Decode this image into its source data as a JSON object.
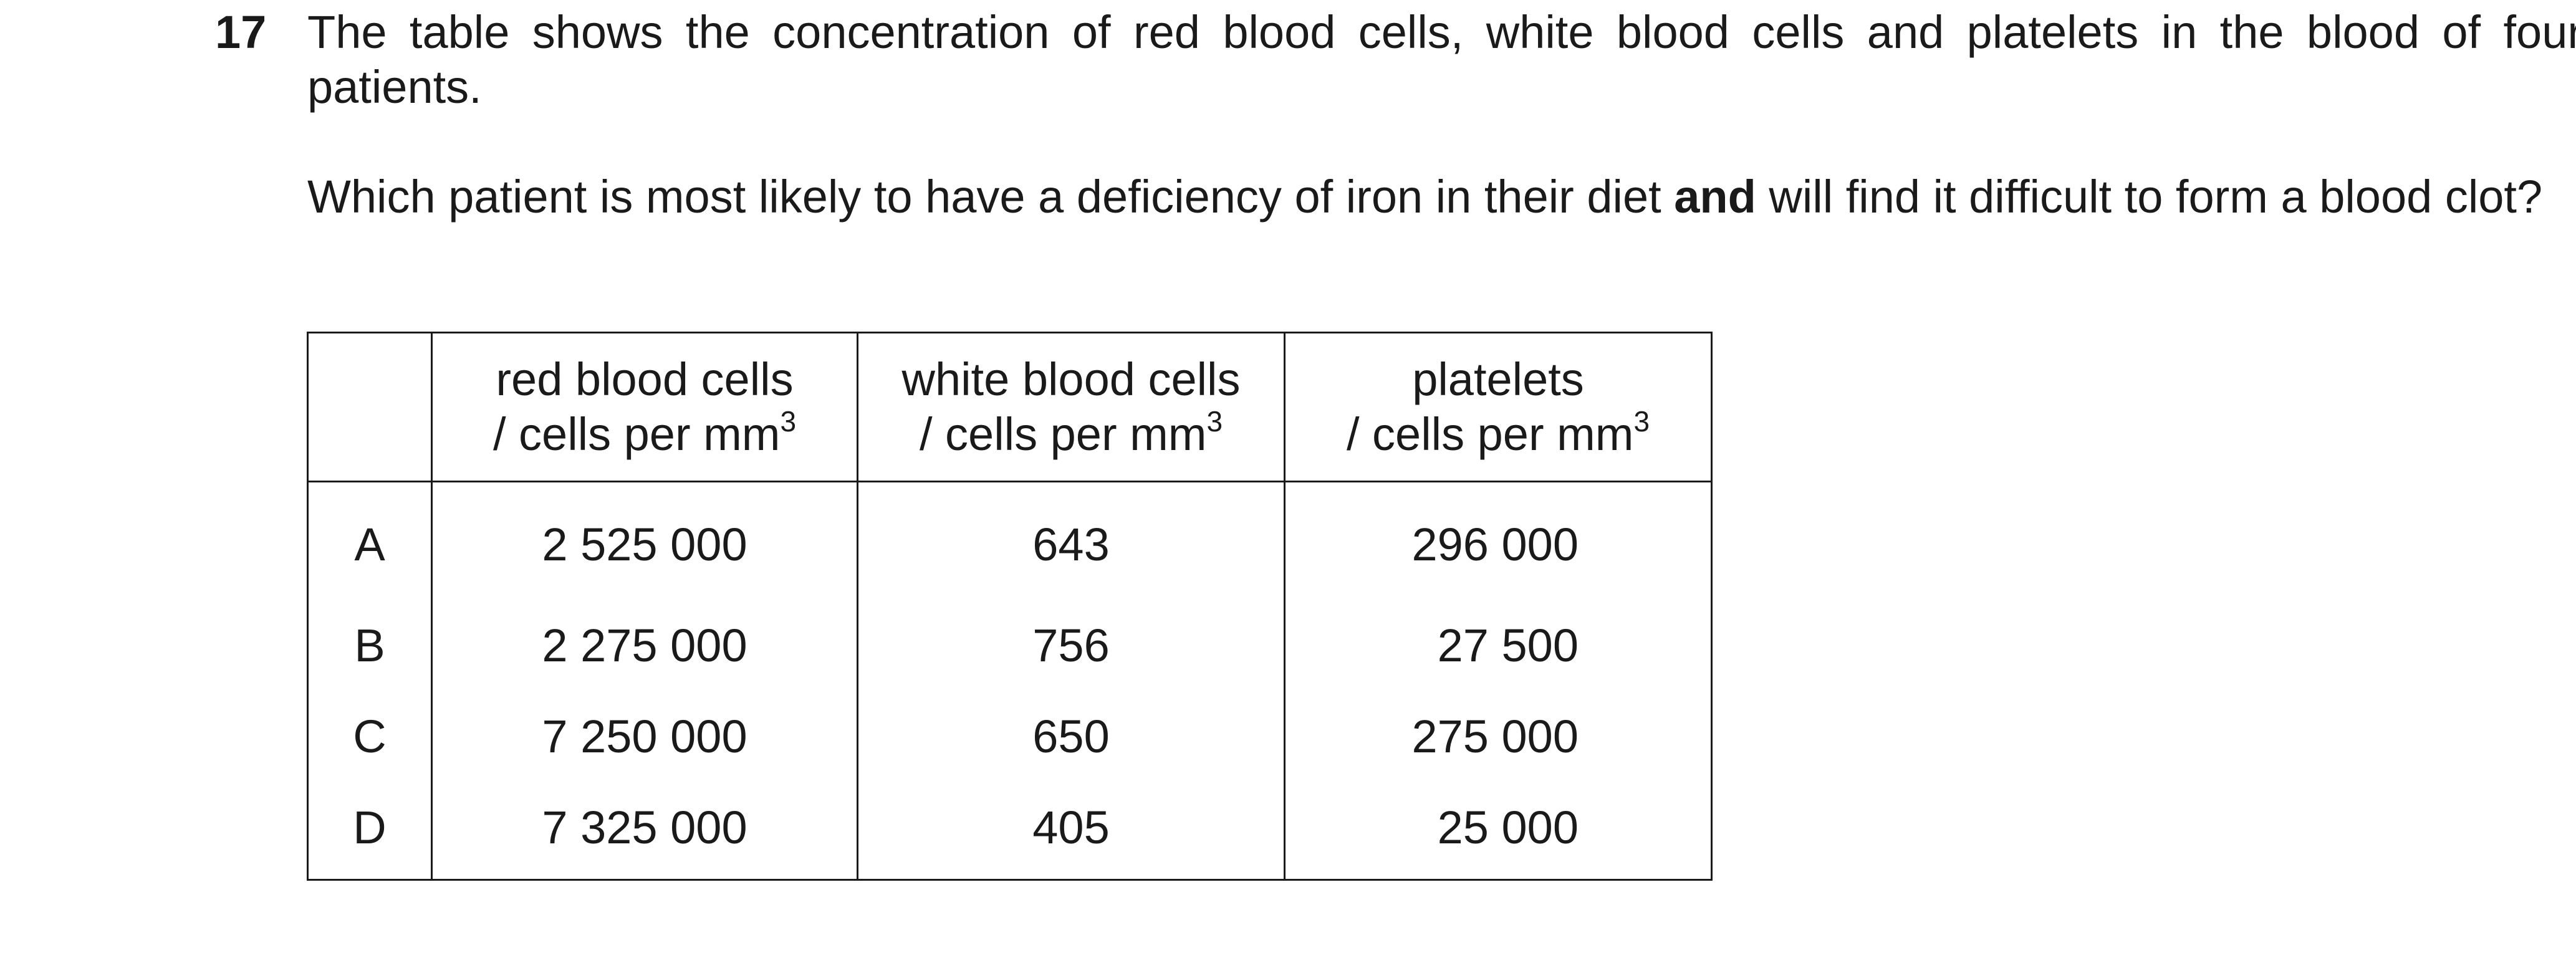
{
  "question": {
    "number": "17",
    "stem_line": "The table shows the concentration of red blood cells, white blood cells and platelets in the blood of four patients.",
    "prompt_before_bold": "Which patient is most likely to have a deficiency of iron in their diet ",
    "prompt_bold": "and",
    "prompt_after_bold": " will find it difficult to form a blood clot?"
  },
  "table": {
    "headers": [
      {
        "line1": "red blood cells",
        "line2": "/ cells per mm",
        "sup": "3"
      },
      {
        "line1": "white blood cells",
        "line2": "/ cells per mm",
        "sup": "3"
      },
      {
        "line1": "platelets",
        "line2": "/ cells per mm",
        "sup": "3"
      }
    ],
    "rows": [
      {
        "option": "A",
        "red": "2 525 000",
        "white": "643",
        "platelets": "296 000"
      },
      {
        "option": "B",
        "red": "2 275 000",
        "white": "756",
        "platelets": "27 500"
      },
      {
        "option": "C",
        "red": "7 250 000",
        "white": "650",
        "platelets": "275 000"
      },
      {
        "option": "D",
        "red": "7 325 000",
        "white": "405",
        "platelets": "25 000"
      }
    ]
  }
}
